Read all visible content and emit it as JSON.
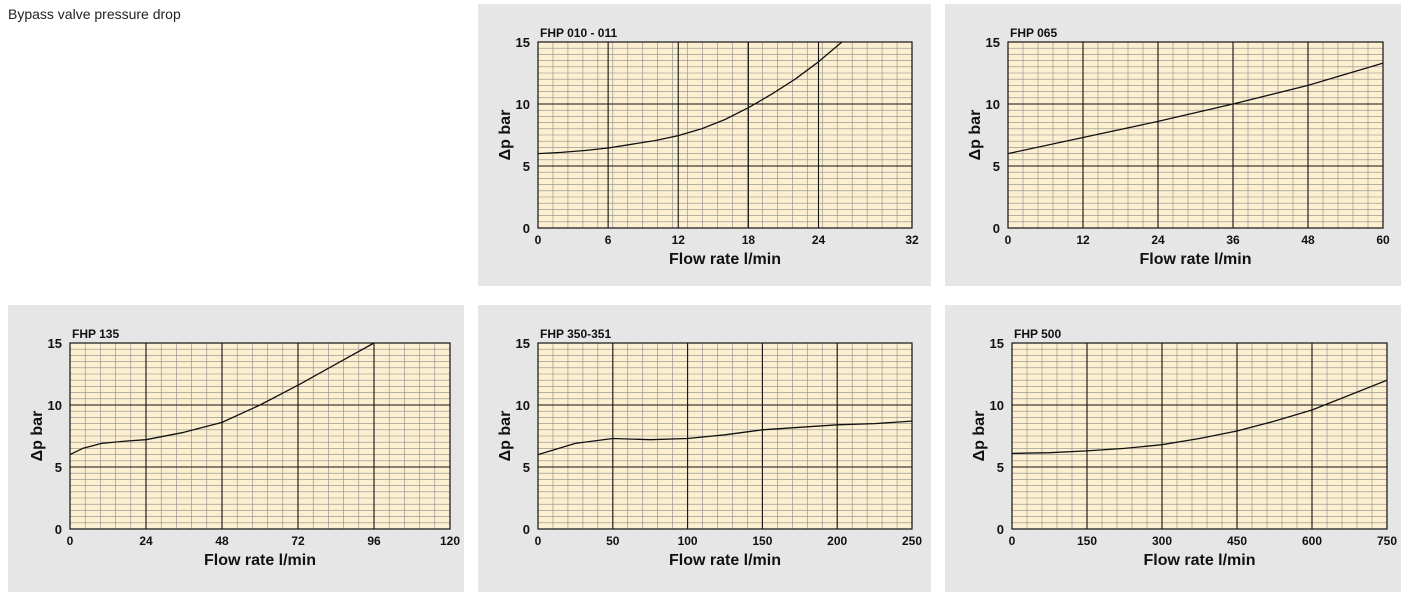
{
  "page": {
    "title": "Bypass valve pressure drop"
  },
  "style": {
    "panel_bg": "#e6e6e6",
    "plot_bg": "#fdf0d0",
    "minor_grid": "#8a8a8a",
    "major_grid": "#111111",
    "curve": "#111111"
  },
  "chart_data": [
    {
      "type": "line",
      "title": "FHP 010 - 011",
      "xlabel": "Flow rate l/min",
      "ylabel": "Δp bar",
      "xlim": [
        0,
        32
      ],
      "ylim": [
        0,
        15
      ],
      "x_ticks": [
        0,
        6,
        12,
        18,
        24,
        32
      ],
      "x_tick_labels": [
        "0",
        "6",
        "12",
        "18",
        "24",
        "32"
      ],
      "x_major_lines": [
        6,
        12,
        18,
        24
      ],
      "y_ticks": [
        0,
        5,
        10,
        15
      ],
      "y_tick_labels": [
        "0",
        "5",
        "10",
        "15"
      ],
      "grid": true,
      "series": [
        {
          "x": [
            0,
            2,
            4,
            6,
            8,
            10,
            12,
            14,
            16,
            18,
            20,
            22,
            24,
            26
          ],
          "y": [
            6.0,
            6.1,
            6.25,
            6.45,
            6.75,
            7.05,
            7.45,
            8.0,
            8.75,
            9.7,
            10.8,
            12.0,
            13.4,
            15.0
          ]
        }
      ]
    },
    {
      "type": "line",
      "title": "FHP 065",
      "xlabel": "Flow rate l/min",
      "ylabel": "Δp bar",
      "xlim": [
        0,
        60
      ],
      "ylim": [
        0,
        15
      ],
      "x_ticks": [
        0,
        12,
        24,
        36,
        48,
        60
      ],
      "x_tick_labels": [
        "0",
        "12",
        "24",
        "36",
        "48",
        "60"
      ],
      "x_major_lines": [
        12,
        24,
        36,
        48
      ],
      "y_ticks": [
        0,
        5,
        10,
        15
      ],
      "y_tick_labels": [
        "0",
        "5",
        "10",
        "15"
      ],
      "grid": true,
      "series": [
        {
          "x": [
            0,
            12,
            24,
            36,
            48,
            60
          ],
          "y": [
            6.0,
            7.3,
            8.6,
            10.0,
            11.5,
            13.3
          ]
        }
      ]
    },
    {
      "type": "line",
      "title": "FHP 135",
      "xlabel": "Flow rate l/min",
      "ylabel": "Δp bar",
      "xlim": [
        0,
        120
      ],
      "ylim": [
        0,
        15
      ],
      "x_ticks": [
        0,
        24,
        48,
        72,
        96,
        120
      ],
      "x_tick_labels": [
        "0",
        "24",
        "48",
        "72",
        "96",
        "120"
      ],
      "x_major_lines": [
        24,
        48,
        72,
        96
      ],
      "y_ticks": [
        0,
        5,
        10,
        15
      ],
      "y_tick_labels": [
        "0",
        "5",
        "10",
        "15"
      ],
      "grid": true,
      "series": [
        {
          "x": [
            0,
            4,
            10,
            18,
            24,
            36,
            48,
            60,
            72,
            84,
            96
          ],
          "y": [
            6.0,
            6.5,
            6.9,
            7.1,
            7.2,
            7.8,
            8.6,
            10.0,
            11.6,
            13.3,
            15.0
          ]
        }
      ]
    },
    {
      "type": "line",
      "title": "FHP 350-351",
      "xlabel": "Flow rate l/min",
      "ylabel": "Δp bar",
      "xlim": [
        0,
        250
      ],
      "ylim": [
        0,
        15
      ],
      "x_ticks": [
        0,
        50,
        100,
        150,
        200,
        250
      ],
      "x_tick_labels": [
        "0",
        "50",
        "100",
        "150",
        "200",
        "250"
      ],
      "x_major_lines": [
        50,
        100,
        150,
        200
      ],
      "y_ticks": [
        0,
        5,
        10,
        15
      ],
      "y_tick_labels": [
        "0",
        "5",
        "10",
        "15"
      ],
      "grid": true,
      "series": [
        {
          "x": [
            0,
            25,
            50,
            75,
            100,
            125,
            150,
            175,
            200,
            225,
            250
          ],
          "y": [
            6.0,
            6.9,
            7.3,
            7.2,
            7.3,
            7.6,
            8.0,
            8.2,
            8.4,
            8.5,
            8.7
          ]
        }
      ]
    },
    {
      "type": "line",
      "title": "FHP 500",
      "xlabel": "Flow rate l/min",
      "ylabel": "Δp bar",
      "xlim": [
        0,
        750
      ],
      "ylim": [
        0,
        15
      ],
      "x_ticks": [
        0,
        150,
        300,
        450,
        600,
        750
      ],
      "x_tick_labels": [
        "0",
        "150",
        "300",
        "450",
        "600",
        "750"
      ],
      "x_major_lines": [
        150,
        300,
        450,
        600
      ],
      "y_ticks": [
        0,
        5,
        10,
        15
      ],
      "y_tick_labels": [
        "0",
        "5",
        "10",
        "15"
      ],
      "grid": true,
      "series": [
        {
          "x": [
            0,
            75,
            150,
            225,
            300,
            375,
            450,
            525,
            600,
            675,
            750
          ],
          "y": [
            6.1,
            6.15,
            6.3,
            6.5,
            6.8,
            7.3,
            7.9,
            8.7,
            9.6,
            10.8,
            12.0
          ]
        }
      ]
    }
  ]
}
